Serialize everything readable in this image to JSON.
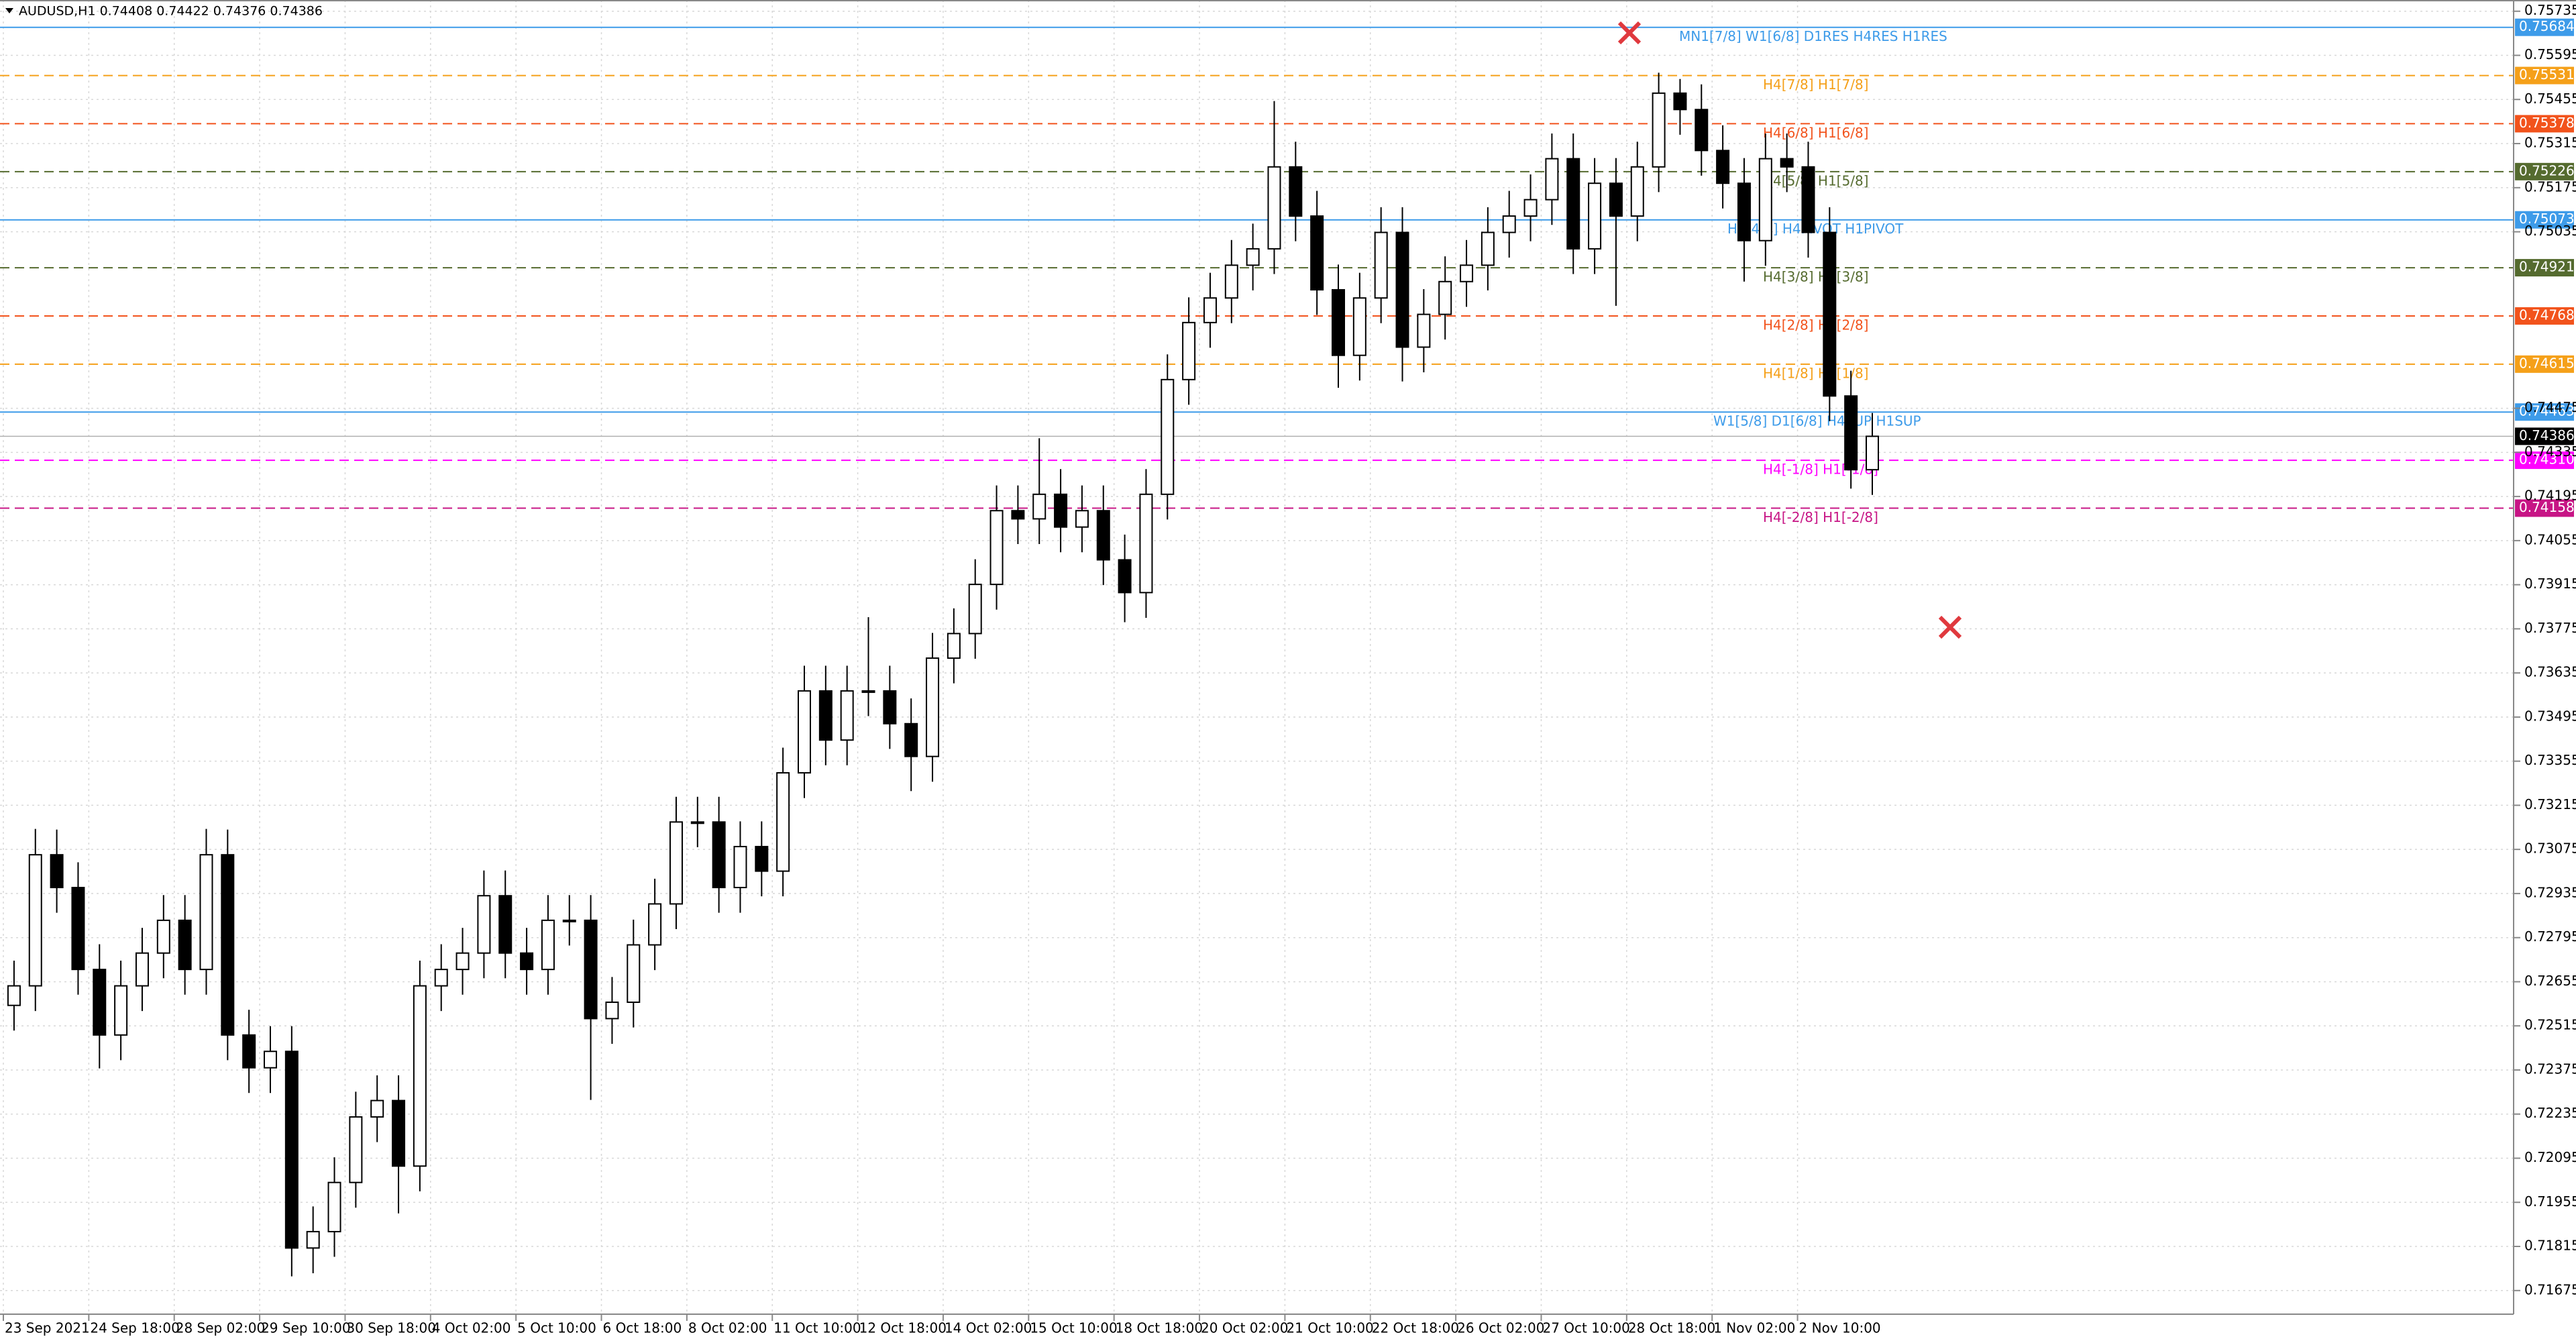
{
  "chart_data": {
    "type": "candlestick",
    "title": "AUDUSD,H1  0.74408 0.74422 0.74376 0.74386",
    "categories": [
      "23 Sep 2021",
      null,
      null,
      null,
      "24 Sep 18:00",
      null,
      null,
      null,
      "28 Sep 02:00",
      null,
      null,
      null,
      "29 Sep 10:00",
      null,
      null,
      null,
      "30 Sep 18:00",
      null,
      null,
      null,
      "4 Oct 02:00",
      null,
      null,
      null,
      "5 Oct 10:00",
      null,
      null,
      null,
      "6 Oct 18:00",
      null,
      null,
      null,
      "8 Oct 02:00",
      null,
      null,
      null,
      "11 Oct 10:00",
      null,
      null,
      null,
      "12 Oct 18:00",
      null,
      null,
      null,
      "14 Oct 02:00",
      null,
      null,
      null,
      "15 Oct 10:00",
      null,
      null,
      null,
      "18 Oct 18:00",
      null,
      null,
      null,
      "20 Oct 02:00",
      null,
      null,
      null,
      "21 Oct 10:00",
      null,
      null,
      null,
      "22 Oct 18:00",
      null,
      null,
      null,
      "26 Oct 02:00",
      null,
      null,
      null,
      "27 Oct 10:00",
      null,
      null,
      null,
      "28 Oct 18:00",
      null,
      null,
      null,
      "1 Nov 02:00",
      null,
      null,
      null,
      "2 Nov 10:00",
      null,
      null,
      null
    ],
    "open": [
      0.7258,
      0.72642,
      0.73058,
      0.72954,
      0.72694,
      0.72486,
      0.72642,
      0.72746,
      0.7285,
      0.72694,
      0.73058,
      0.72486,
      0.72382,
      0.72434,
      0.7181,
      0.71862,
      0.72018,
      0.72226,
      0.72278,
      0.7207,
      0.72642,
      0.72694,
      0.72746,
      0.72928,
      0.72746,
      0.72694,
      0.7285,
      0.7285,
      0.72538,
      0.7259,
      0.72772,
      0.72902,
      0.73162,
      0.73162,
      0.72954,
      0.73084,
      0.73006,
      0.73318,
      0.73578,
      0.73422,
      0.73578,
      0.73578,
      0.73474,
      0.7337,
      0.73682,
      0.7376,
      0.73916,
      0.7415,
      0.74124,
      0.74202,
      0.74098,
      0.7415,
      0.73994,
      0.7389,
      0.74202,
      0.74566,
      0.74747,
      0.74825,
      0.74929,
      0.74981,
      0.75241,
      0.75085,
      0.74851,
      0.74643,
      0.74825,
      0.75033,
      0.74669,
      0.74773,
      0.74877,
      0.74929,
      0.75033,
      0.75085,
      0.75137,
      0.75267,
      0.74981,
      0.75189,
      0.75085,
      0.75241,
      0.75475,
      0.75423,
      0.75293,
      0.75189,
      0.75007,
      0.75267,
      0.75241,
      0.75033,
      0.74514,
      0.7428
    ],
    "high": [
      0.72722,
      0.7314,
      0.73138,
      0.73034,
      0.72774,
      0.72722,
      0.72826,
      0.7293,
      0.7293,
      0.7314,
      0.73138,
      0.72566,
      0.72514,
      0.72514,
      0.71942,
      0.72098,
      0.72306,
      0.72358,
      0.72358,
      0.72722,
      0.72774,
      0.72826,
      0.73008,
      0.73008,
      0.72826,
      0.7293,
      0.7293,
      0.7293,
      0.7267,
      0.72852,
      0.72982,
      0.73242,
      0.73242,
      0.73242,
      0.73164,
      0.73164,
      0.73398,
      0.73658,
      0.73658,
      0.73658,
      0.73812,
      0.73658,
      0.73554,
      0.73762,
      0.7384,
      0.73996,
      0.7423,
      0.7423,
      0.7438,
      0.74282,
      0.7423,
      0.7423,
      0.74074,
      0.74282,
      0.74646,
      0.74827,
      0.74905,
      0.75009,
      0.75061,
      0.7545,
      0.75321,
      0.75165,
      0.74931,
      0.74905,
      0.75113,
      0.75113,
      0.74853,
      0.74957,
      0.75009,
      0.75113,
      0.75165,
      0.75217,
      0.75347,
      0.75347,
      0.75269,
      0.75269,
      0.75321,
      0.7554,
      0.7552,
      0.75503,
      0.75373,
      0.75269,
      0.75347,
      0.75347,
      0.75321,
      0.75113,
      0.74594,
      0.7446
    ],
    "low": [
      0.725,
      0.72562,
      0.72874,
      0.72614,
      0.7238,
      0.72406,
      0.72562,
      0.72666,
      0.72614,
      0.72614,
      0.72406,
      0.72302,
      0.72302,
      0.7172,
      0.7173,
      0.71782,
      0.71938,
      0.72146,
      0.7192,
      0.7199,
      0.72562,
      0.72614,
      0.72666,
      0.72666,
      0.72614,
      0.72614,
      0.7277,
      0.7228,
      0.72458,
      0.7251,
      0.72692,
      0.72822,
      0.73082,
      0.72874,
      0.72874,
      0.72926,
      0.72926,
      0.73238,
      0.73342,
      0.73342,
      0.73498,
      0.73394,
      0.7326,
      0.7329,
      0.73602,
      0.7368,
      0.73836,
      0.74044,
      0.74044,
      0.74018,
      0.74018,
      0.73914,
      0.73796,
      0.7381,
      0.74122,
      0.74486,
      0.74667,
      0.74745,
      0.74849,
      0.74901,
      0.75005,
      0.74771,
      0.7454,
      0.74563,
      0.74745,
      0.7456,
      0.74589,
      0.74693,
      0.74797,
      0.74849,
      0.74953,
      0.75005,
      0.75057,
      0.74901,
      0.74901,
      0.748,
      0.75005,
      0.75161,
      0.75343,
      0.75213,
      0.75109,
      0.74877,
      0.74927,
      0.75161,
      0.74953,
      0.74434,
      0.7422,
      0.742
    ],
    "close": [
      0.72642,
      0.73058,
      0.72954,
      0.72694,
      0.72486,
      0.72642,
      0.72746,
      0.7285,
      0.72694,
      0.73058,
      0.72486,
      0.72382,
      0.72434,
      0.7181,
      0.71862,
      0.72018,
      0.72226,
      0.72278,
      0.7207,
      0.72642,
      0.72694,
      0.72746,
      0.72928,
      0.72746,
      0.72694,
      0.7285,
      0.7285,
      0.72538,
      0.7259,
      0.72772,
      0.72902,
      0.73162,
      0.73162,
      0.72954,
      0.73084,
      0.73006,
      0.73318,
      0.73578,
      0.73422,
      0.73578,
      0.73578,
      0.73474,
      0.7337,
      0.73682,
      0.7376,
      0.73916,
      0.7415,
      0.74124,
      0.74202,
      0.74098,
      0.7415,
      0.73994,
      0.7389,
      0.74202,
      0.74566,
      0.74747,
      0.74825,
      0.74929,
      0.74981,
      0.75241,
      0.75085,
      0.74851,
      0.74643,
      0.74825,
      0.75033,
      0.74669,
      0.74773,
      0.74877,
      0.74929,
      0.75033,
      0.75085,
      0.75137,
      0.75267,
      0.74981,
      0.75189,
      0.75085,
      0.75241,
      0.75475,
      0.75423,
      0.75293,
      0.75189,
      0.75007,
      0.75267,
      0.75241,
      0.75033,
      0.74514,
      0.7428,
      0.74386
    ],
    "ylim": [
      0.716,
      0.7576
    ],
    "yticks": [
      0.75735,
      0.75595,
      0.75455,
      0.75315,
      0.75175,
      0.75035,
      0.74475,
      0.74335,
      0.74195,
      0.74055,
      0.73915,
      0.73775,
      0.73635,
      0.73495,
      0.73355,
      0.73215,
      0.73075,
      0.72935,
      0.72795,
      0.72655,
      0.72515,
      0.72375,
      0.72235,
      0.72095,
      0.71955,
      0.71815,
      0.71675
    ],
    "grid": true,
    "levels": [
      {
        "name": "MN1[7/8] W1[6/8] D1RES H4RES H1RES",
        "value": 0.75684,
        "value_label": "0.75684",
        "color": "#3d9be9",
        "dashed": false
      },
      {
        "name": "H4[7/8] H1[7/8]",
        "value": 0.75531,
        "value_label": "0.75531",
        "color": "#f5a019",
        "dashed": true
      },
      {
        "name": "H4[6/8] H1[6/8]",
        "value": 0.75378,
        "value_label": "0.75378",
        "color": "#f2531c",
        "dashed": true
      },
      {
        "name": "H4[5/8] H1[5/8]",
        "value": 0.75226,
        "value_label": "0.75226",
        "color": "#556b2f",
        "dashed": true
      },
      {
        "name": "H4[4/8] H4PIVOT H1PIVOT",
        "value": 0.75073,
        "value_label": "0.75073",
        "color": "#3d9be9",
        "dashed": false
      },
      {
        "name": "H4[3/8] H1[3/8]",
        "value": 0.74921,
        "value_label": "0.74921",
        "color": "#556b2f",
        "dashed": true
      },
      {
        "name": "H4[2/8] H1[2/8]",
        "value": 0.74768,
        "value_label": "0.74768",
        "color": "#f2531c",
        "dashed": true
      },
      {
        "name": "H4[1/8] H1[1/8]",
        "value": 0.74615,
        "value_label": "0.74615",
        "color": "#f5a019",
        "dashed": true
      },
      {
        "name": "W1[5/8] D1[6/8] H4SUP H1SUP",
        "value": 0.74463,
        "value_label": "0.74463",
        "color": "#3d9be9",
        "dashed": false
      },
      {
        "name": "H4[-1/8] H1[-1/8]",
        "value": 0.7431,
        "value_label": "0.74310",
        "color": "#ff00ff",
        "dashed": true
      },
      {
        "name": "H4[-2/8] H1[-2/8]",
        "value": 0.74158,
        "value_label": "0.74158",
        "color": "#c71585",
        "dashed": true
      }
    ],
    "current_price": {
      "value": 0.74386,
      "label": "0.74386"
    }
  }
}
